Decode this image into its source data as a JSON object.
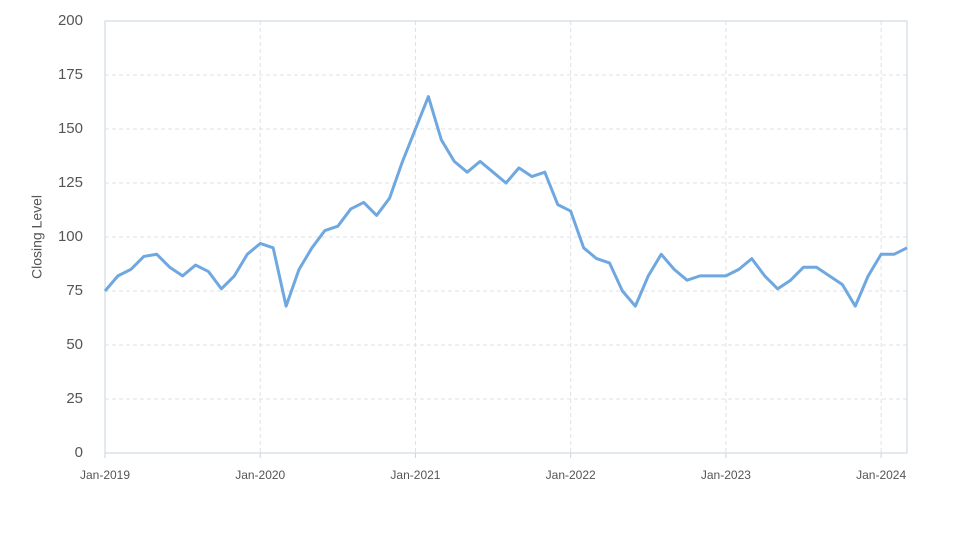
{
  "chart_data": {
    "type": "line",
    "y_label": "Closing Level",
    "x": [
      "2019-01",
      "2019-02",
      "2019-03",
      "2019-04",
      "2019-05",
      "2019-06",
      "2019-07",
      "2019-08",
      "2019-09",
      "2019-10",
      "2019-11",
      "2019-12",
      "2020-01",
      "2020-02",
      "2020-03",
      "2020-04",
      "2020-05",
      "2020-06",
      "2020-07",
      "2020-08",
      "2020-09",
      "2020-10",
      "2020-11",
      "2020-12",
      "2021-01",
      "2021-02",
      "2021-03",
      "2021-04",
      "2021-05",
      "2021-06",
      "2021-07",
      "2021-08",
      "2021-09",
      "2021-10",
      "2021-11",
      "2021-12",
      "2022-01",
      "2022-02",
      "2022-03",
      "2022-04",
      "2022-05",
      "2022-06",
      "2022-07",
      "2022-08",
      "2022-09",
      "2022-10",
      "2022-11",
      "2022-12",
      "2023-01",
      "2023-02",
      "2023-03",
      "2023-04",
      "2023-05",
      "2023-06",
      "2023-07",
      "2023-08",
      "2023-09",
      "2023-10",
      "2023-11",
      "2023-12",
      "2024-01",
      "2024-02",
      "2024-03"
    ],
    "series": [
      {
        "color": "#6fa8e0",
        "values": [
          75,
          82,
          85,
          91,
          92,
          86,
          82,
          87,
          84,
          76,
          82,
          92,
          97,
          95,
          68,
          85,
          95,
          103,
          105,
          113,
          116,
          110,
          118,
          135,
          150,
          165,
          145,
          135,
          130,
          135,
          130,
          125,
          132,
          128,
          130,
          115,
          112,
          95,
          90,
          88,
          75,
          68,
          82,
          92,
          85,
          80,
          82,
          82,
          82,
          85,
          90,
          82,
          76,
          80,
          86,
          86,
          82,
          78,
          68,
          82,
          92,
          92,
          95
        ]
      }
    ],
    "xlim": [
      "2019-01",
      "2024-03"
    ],
    "xticks": [
      {
        "value": "2019-01",
        "label": "Jan-2019"
      },
      {
        "value": "2020-01",
        "label": "Jan-2020"
      },
      {
        "value": "2021-01",
        "label": "Jan-2021"
      },
      {
        "value": "2022-01",
        "label": "Jan-2022"
      },
      {
        "value": "2023-01",
        "label": "Jan-2023"
      },
      {
        "value": "2024-01",
        "label": "Jan-2024"
      }
    ],
    "ylim": [
      0,
      200
    ],
    "yticks": [
      0,
      25,
      50,
      75,
      100,
      125,
      150,
      175,
      200
    ],
    "grid": true
  }
}
